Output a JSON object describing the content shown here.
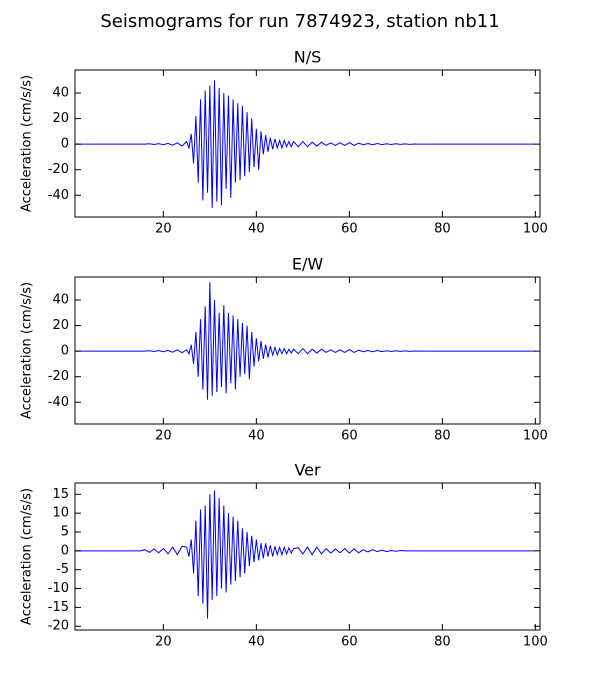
{
  "title": "Seismograms for run 7874923, station nb11",
  "chart_data": [
    {
      "type": "line",
      "title": "N/S",
      "ylabel": "Acceleration (cm/s/s)",
      "x": [
        1,
        5,
        10,
        15,
        16,
        17,
        18,
        19,
        20,
        21,
        22,
        23,
        24,
        25,
        25.5,
        26,
        26.5,
        27,
        27.5,
        28,
        28.5,
        29,
        29.5,
        30,
        30.5,
        31,
        31.5,
        32,
        32.5,
        33,
        33.5,
        34,
        34.5,
        35,
        35.5,
        36,
        36.5,
        37,
        37.5,
        38,
        38.5,
        39,
        39.5,
        40,
        40.5,
        41,
        41.5,
        42,
        42.5,
        43,
        43.5,
        44,
        44.5,
        45,
        45.5,
        46,
        46.5,
        47,
        47.5,
        48,
        49,
        50,
        51,
        52,
        53,
        54,
        55,
        56,
        57,
        58,
        59,
        60,
        61,
        62,
        63,
        64,
        65,
        66,
        67,
        68,
        69,
        70,
        71,
        72,
        73,
        74,
        75,
        80,
        90,
        100
      ],
      "values": [
        0,
        0,
        0,
        0,
        0,
        0.3,
        -0.3,
        0.4,
        -0.5,
        0.6,
        -0.8,
        1,
        -1.5,
        2,
        -3,
        8,
        -15,
        22,
        -30,
        35,
        -44,
        42,
        -38,
        46,
        -50,
        50,
        -45,
        44,
        -48,
        40,
        -35,
        38,
        -42,
        35,
        -30,
        32,
        -28,
        30,
        -25,
        25,
        -22,
        20,
        -18,
        12,
        -20,
        10,
        -8,
        7,
        -6,
        5,
        -4,
        4,
        -3,
        3,
        -3,
        3,
        -2,
        2,
        -2,
        2,
        -2,
        2,
        -2,
        1.5,
        -1.5,
        1.5,
        -1,
        1,
        -1,
        1,
        -1,
        1.2,
        -1,
        0.8,
        -0.5,
        0.5,
        -0.5,
        0.5,
        -0.4,
        0.3,
        -0.3,
        0.3,
        -0.2,
        0.2,
        -0.2,
        0.1,
        0,
        0,
        0,
        0
      ],
      "color": "#0000ff",
      "xlim": [
        1,
        101
      ],
      "ylim": [
        -57,
        58
      ],
      "xticks": [
        20,
        40,
        60,
        80,
        100
      ],
      "yticks": [
        -40,
        -20,
        0,
        20,
        40
      ]
    },
    {
      "type": "line",
      "title": "E/W",
      "ylabel": "Acceleration (cm/s/s)",
      "x": [
        1,
        5,
        10,
        15,
        16,
        17,
        18,
        19,
        20,
        21,
        22,
        23,
        24,
        25,
        25.5,
        26,
        26.5,
        27,
        27.5,
        28,
        28.5,
        29,
        29.5,
        30,
        30.5,
        31,
        31.5,
        32,
        32.5,
        33,
        33.5,
        34,
        34.5,
        35,
        35.5,
        36,
        36.5,
        37,
        37.5,
        38,
        38.5,
        39,
        39.5,
        40,
        40.5,
        41,
        41.5,
        42,
        42.5,
        43,
        43.5,
        44,
        44.5,
        45,
        45.5,
        46,
        46.5,
        47,
        47.5,
        48,
        49,
        50,
        51,
        52,
        53,
        54,
        55,
        56,
        57,
        58,
        59,
        60,
        61,
        62,
        63,
        64,
        65,
        66,
        67,
        68,
        69,
        70,
        71,
        72,
        73,
        74,
        75,
        80,
        90,
        100
      ],
      "values": [
        0,
        0,
        0,
        0,
        0,
        0.3,
        -0.3,
        0.4,
        -0.5,
        0.6,
        -0.8,
        1,
        -1.2,
        1,
        -2,
        5,
        -10,
        15,
        -20,
        25,
        -30,
        35,
        -38,
        54,
        -35,
        40,
        -32,
        30,
        -28,
        36,
        -33,
        30,
        -25,
        28,
        -30,
        25,
        -20,
        22,
        -18,
        20,
        -22,
        15,
        -12,
        10,
        -8,
        8,
        -6,
        5,
        -5,
        4,
        -3,
        3,
        -3,
        2,
        -2,
        2,
        -2,
        1.5,
        -1.5,
        1.5,
        -2,
        2,
        -2,
        1.5,
        -1.5,
        1.5,
        -1,
        1,
        -1,
        1,
        -1,
        1.2,
        -1,
        0.8,
        -0.5,
        0.5,
        -0.5,
        0.5,
        -0.4,
        0.3,
        -0.3,
        0.3,
        -0.2,
        0.2,
        -0.2,
        0.1,
        0,
        0,
        0,
        0
      ],
      "color": "#0000ff",
      "xlim": [
        1,
        101
      ],
      "ylim": [
        -57,
        58
      ],
      "xticks": [
        20,
        40,
        60,
        80,
        100
      ],
      "yticks": [
        -40,
        -20,
        0,
        20,
        40
      ]
    },
    {
      "type": "line",
      "title": "Ver",
      "ylabel": "Acceleration (cm/s/s)",
      "x": [
        1,
        5,
        10,
        15,
        16,
        17,
        18,
        19,
        20,
        21,
        22,
        23,
        24,
        25,
        25.5,
        26,
        26.5,
        27,
        27.5,
        28,
        28.5,
        29,
        29.5,
        30,
        30.5,
        31,
        31.5,
        32,
        32.5,
        33,
        33.5,
        34,
        34.5,
        35,
        35.5,
        36,
        36.5,
        37,
        37.5,
        38,
        38.5,
        39,
        39.5,
        40,
        40.5,
        41,
        41.5,
        42,
        42.5,
        43,
        43.5,
        44,
        44.5,
        45,
        45.5,
        46,
        46.5,
        47,
        47.5,
        48,
        49,
        50,
        51,
        52,
        53,
        54,
        55,
        56,
        57,
        58,
        59,
        60,
        61,
        62,
        63,
        64,
        65,
        66,
        67,
        68,
        69,
        70,
        71,
        72,
        73,
        74,
        75,
        80,
        90,
        100
      ],
      "values": [
        0,
        0,
        0,
        0,
        0.3,
        -0.4,
        0.5,
        -0.5,
        0.6,
        -0.8,
        1,
        -1,
        1.2,
        1,
        -1.5,
        3,
        -6,
        8,
        -12,
        11,
        -14,
        12,
        -18,
        15,
        -13,
        16,
        -12,
        14,
        -10,
        12,
        -11,
        10,
        -9,
        9,
        -8,
        8,
        -7,
        6,
        -6,
        5,
        -4,
        4,
        -3,
        3,
        -2.5,
        2,
        -2,
        2,
        -1.5,
        1.5,
        -1.5,
        1.2,
        -1,
        1,
        -1,
        1,
        -0.8,
        0.8,
        -0.6,
        0.6,
        0.8,
        -0.8,
        1,
        -1,
        1,
        -0.8,
        0.6,
        -0.6,
        0.5,
        -0.5,
        0.6,
        -0.6,
        0.5,
        -0.5,
        0.3,
        -0.3,
        0.3,
        -0.2,
        0.2,
        -0.2,
        0.1,
        -0.1,
        0.1,
        0,
        0,
        0,
        0,
        0,
        0,
        0
      ],
      "color": "#0000ff",
      "xlim": [
        1,
        101
      ],
      "ylim": [
        -21,
        18
      ],
      "xticks": [
        20,
        40,
        60,
        80,
        100
      ],
      "yticks": [
        -20,
        -15,
        -10,
        -5,
        0,
        5,
        10,
        15
      ]
    }
  ]
}
